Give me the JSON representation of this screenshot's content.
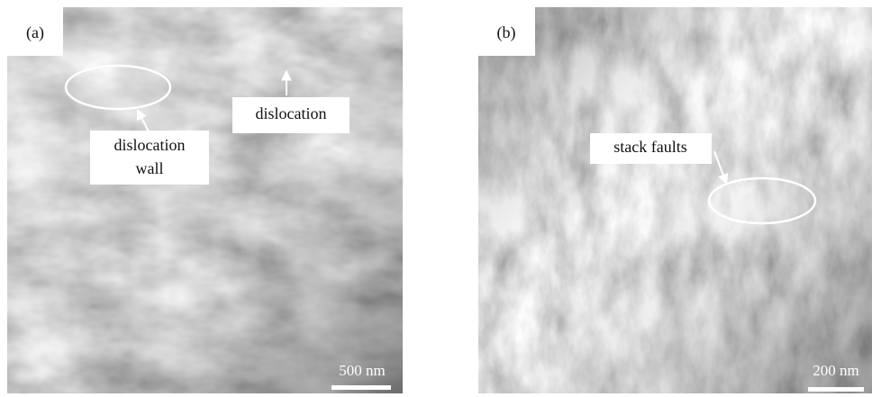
{
  "panels": [
    {
      "label": "(a)",
      "annotations": [
        {
          "lines": [
            "dislocation"
          ]
        },
        {
          "lines": [
            "dislocation",
            "wall"
          ]
        }
      ],
      "scale_bar": "500 nm"
    },
    {
      "label": "(b)",
      "annotations": [
        {
          "lines": [
            "stack faults"
          ]
        }
      ],
      "scale_bar": "200 nm"
    }
  ]
}
